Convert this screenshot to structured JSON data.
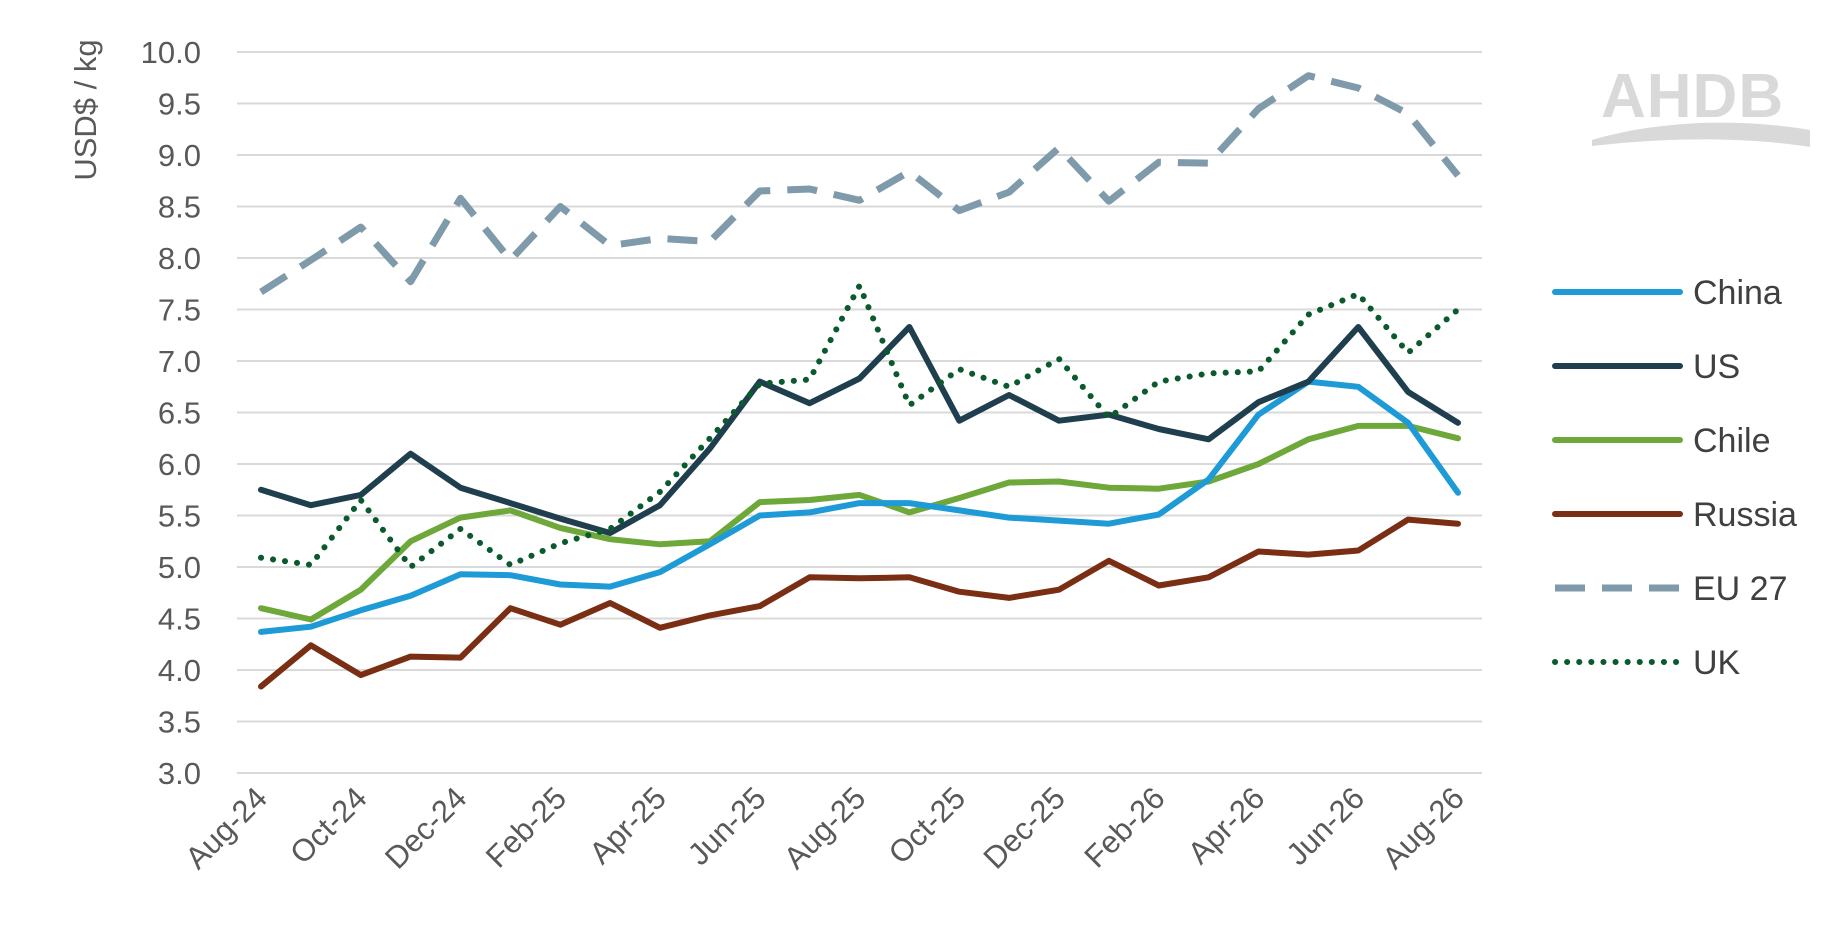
{
  "logo": {
    "text": "AHDB"
  },
  "chart_data": {
    "type": "line",
    "title": "",
    "xlabel": "",
    "ylabel": "USD$ / kg",
    "ylim": [
      3.0,
      10.0
    ],
    "yticks": [
      "3.0",
      "3.5",
      "4.0",
      "4.5",
      "5.0",
      "5.5",
      "6.0",
      "6.5",
      "7.0",
      "7.5",
      "8.0",
      "8.5",
      "9.0",
      "9.5",
      "10.0"
    ],
    "grid": "horizontal",
    "legend": "right",
    "x": [
      "Aug-24",
      "Sep-24",
      "Oct-24",
      "Nov-24",
      "Dec-24",
      "Jan-25",
      "Feb-25",
      "Mar-25",
      "Apr-25",
      "May-25",
      "Jun-25",
      "Jul-25",
      "Aug-25",
      "Sep-25",
      "Oct-25",
      "Nov-25",
      "Dec-25",
      "Jan-26",
      "Feb-26",
      "Mar-26",
      "Apr-26",
      "May-26",
      "Jun-26",
      "Jul-26",
      "Aug-26"
    ],
    "x_tick_labels": [
      "Aug-24",
      "Oct-24",
      "Dec-24",
      "Feb-25",
      "Apr-25",
      "Jun-25",
      "Aug-25",
      "Oct-25",
      "Dec-25",
      "Feb-26",
      "Apr-26",
      "Jun-26",
      "Aug-26"
    ],
    "series": [
      {
        "name": "China",
        "color": "#1e9bd7",
        "style": "solid",
        "values": [
          4.37,
          4.42,
          4.58,
          4.72,
          4.93,
          4.92,
          4.83,
          4.81,
          4.95,
          5.22,
          5.5,
          5.53,
          5.62,
          5.62,
          5.55,
          5.48,
          5.45,
          5.42,
          5.51,
          5.85,
          6.48,
          6.8,
          6.75,
          6.4,
          5.72
        ]
      },
      {
        "name": "US",
        "color": "#1f3f4f",
        "style": "solid",
        "values": [
          5.75,
          5.6,
          5.7,
          6.1,
          5.77,
          5.62,
          5.47,
          5.33,
          5.6,
          6.15,
          6.8,
          6.59,
          6.83,
          7.33,
          6.42,
          6.67,
          6.42,
          6.48,
          6.34,
          6.24,
          6.6,
          6.8,
          7.33,
          6.7,
          6.4
        ]
      },
      {
        "name": "Chile",
        "color": "#6fa83a",
        "style": "solid",
        "values": [
          4.6,
          4.49,
          4.78,
          5.25,
          5.48,
          5.55,
          5.38,
          5.27,
          5.22,
          5.25,
          5.63,
          5.65,
          5.7,
          5.53,
          5.67,
          5.82,
          5.83,
          5.77,
          5.76,
          5.83,
          6.0,
          6.24,
          6.37,
          6.37,
          6.25
        ]
      },
      {
        "name": "Russia",
        "color": "#7a2e14",
        "style": "solid",
        "values": [
          3.84,
          4.24,
          3.95,
          4.13,
          4.12,
          4.6,
          4.44,
          4.65,
          4.41,
          4.53,
          4.62,
          4.9,
          4.89,
          4.9,
          4.76,
          4.7,
          4.78,
          5.06,
          4.82,
          4.9,
          5.15,
          5.12,
          5.16,
          5.46,
          5.42
        ]
      },
      {
        "name": "EU 27",
        "color": "#7f9aaa",
        "style": "dashed",
        "values": [
          7.67,
          7.98,
          8.3,
          7.77,
          8.58,
          7.98,
          8.5,
          8.12,
          8.19,
          8.16,
          8.65,
          8.67,
          8.56,
          8.84,
          8.46,
          8.64,
          9.07,
          8.55,
          8.93,
          8.92,
          9.45,
          9.77,
          9.65,
          9.4,
          8.8
        ]
      },
      {
        "name": "UK",
        "color": "#0b5a2e",
        "style": "dotted",
        "values": [
          5.09,
          5.02,
          5.65,
          5.0,
          5.37,
          5.02,
          5.23,
          5.37,
          5.73,
          6.25,
          6.78,
          6.82,
          7.73,
          6.57,
          6.92,
          6.75,
          7.02,
          6.45,
          6.8,
          6.88,
          6.9,
          7.45,
          7.65,
          7.08,
          7.5
        ]
      }
    ]
  }
}
